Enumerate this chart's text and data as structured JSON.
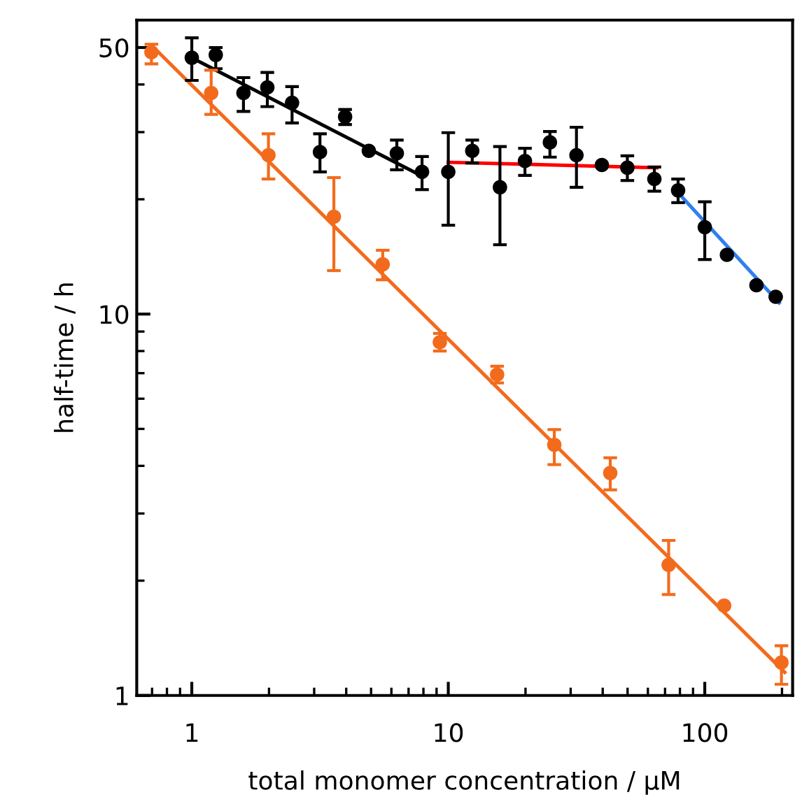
{
  "chart_data": {
    "type": "scatter",
    "xlabel": "total monomer concentration / μM",
    "ylabel": "half-time / h",
    "log": "xy",
    "xlim": [
      0.61,
      220
    ],
    "xticks": [
      1,
      10,
      100
    ],
    "ylim": [
      1,
      59
    ],
    "yticks": [
      1,
      10,
      50
    ],
    "grid": false,
    "legend": false,
    "marker": "circle",
    "series": [
      {
        "type": "line",
        "marker": "none",
        "color": "#000000",
        "x": [
          1,
          7.9
        ],
        "values": [
          47,
          23
        ]
      },
      {
        "type": "line",
        "marker": "none",
        "color": "#ff0000",
        "x": [
          10,
          65
        ],
        "values": [
          25,
          24.2
        ]
      },
      {
        "type": "line",
        "marker": "none",
        "color": "#2f7fef",
        "x": [
          78.7,
          195
        ],
        "values": [
          20.8,
          10.7
        ]
      },
      {
        "type": "line",
        "marker": "none",
        "color": "#f26b1d",
        "x": [
          0.7,
          205
        ],
        "values": [
          50.5,
          1.15
        ]
      },
      {
        "color": "#000000",
        "x": [
          1,
          1.24,
          1.59,
          1.97,
          2.46,
          3.96,
          3.16,
          4.9,
          6.3,
          7.9,
          10,
          12.4,
          15.9,
          19.9,
          24.9,
          31.6,
          39.7,
          49.9,
          63.6,
          78.7,
          100,
          122,
          159,
          189
        ],
        "values": [
          47,
          47.8,
          38,
          39.3,
          35.8,
          32.9,
          26.6,
          26.8,
          26.4,
          23.6,
          23.6,
          26.8,
          21.5,
          25.2,
          28.2,
          26.1,
          24.6,
          24.2,
          22.6,
          21.1,
          16.9,
          14.3,
          11.9,
          11.1
        ],
        "errors": [
          [
            41,
            53
          ],
          [
            44,
            50
          ],
          [
            34,
            41.7
          ],
          [
            35,
            43
          ],
          [
            31.7,
            39.5
          ],
          [
            31.4,
            34.4
          ],
          [
            23.6,
            29.7
          ],
          null,
          [
            23.9,
            28.6
          ],
          [
            21.2,
            25.9
          ],
          [
            17.1,
            29.9
          ],
          [
            24.9,
            28.6
          ],
          [
            15.2,
            27.5
          ],
          [
            23.1,
            27.2
          ],
          [
            25.8,
            30.1
          ],
          [
            21.5,
            30.9
          ],
          null,
          [
            22.4,
            26
          ],
          [
            21,
            24.3
          ],
          [
            19.6,
            22.6
          ],
          [
            13.9,
            19.7
          ],
          null,
          null,
          null
        ]
      },
      {
        "color": "#f26b1d",
        "x": [
          0.696,
          1.19,
          1.99,
          3.58,
          5.55,
          9.27,
          15.5,
          25.9,
          42.8,
          72.3,
          119,
          199
        ],
        "values": [
          48.6,
          38,
          26.1,
          18,
          13.5,
          8.44,
          6.94,
          4.54,
          3.83,
          2.2,
          1.72,
          1.22
        ],
        "errors": [
          [
            45.3,
            51
          ],
          [
            33.4,
            43.6
          ],
          [
            22.6,
            29.7
          ],
          [
            13,
            22.8
          ],
          [
            12.3,
            14.7
          ],
          [
            8,
            8.9
          ],
          [
            6.6,
            7.3
          ],
          [
            4.03,
            4.98
          ],
          [
            3.46,
            4.2
          ],
          [
            1.84,
            2.55
          ],
          null,
          [
            1.07,
            1.35
          ]
        ]
      }
    ]
  }
}
